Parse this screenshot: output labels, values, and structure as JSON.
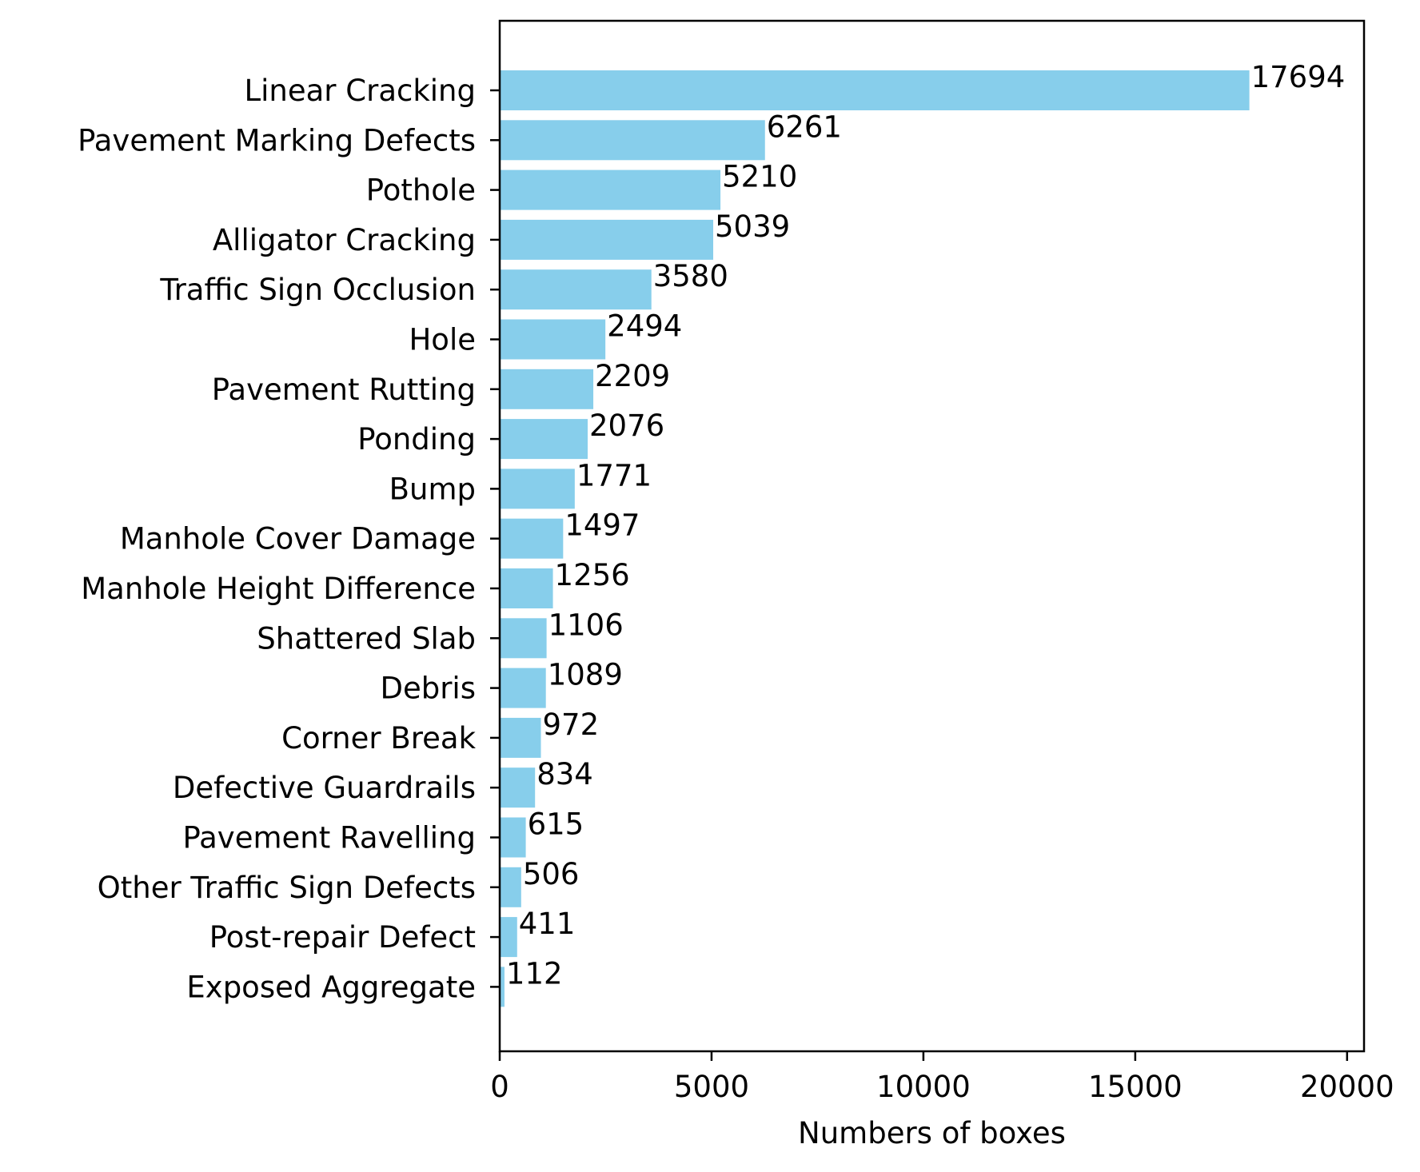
{
  "chart_data": {
    "type": "bar",
    "orientation": "horizontal",
    "categories": [
      "Linear Cracking",
      "Pavement Marking Defects",
      "Pothole",
      "Alligator Cracking",
      "Traffic Sign Occlusion",
      "Hole",
      "Pavement Rutting",
      "Ponding",
      "Bump",
      "Manhole Cover Damage",
      "Manhole Height Difference",
      "Shattered Slab",
      "Debris",
      "Corner Break",
      "Defective Guardrails",
      "Pavement Ravelling",
      "Other Traffic Sign Defects",
      "Post-repair Defect",
      "Exposed Aggregate"
    ],
    "values": [
      17694,
      6261,
      5210,
      5039,
      3580,
      2494,
      2209,
      2076,
      1771,
      1497,
      1256,
      1106,
      1089,
      972,
      834,
      615,
      506,
      411,
      112
    ],
    "data_labels": [
      "17694",
      "6261",
      "5210",
      "5039",
      "3580",
      "2494",
      "2209",
      "2076",
      "1771",
      "1497",
      "1256",
      "1106",
      "1089",
      "972",
      "834",
      "615",
      "506",
      "411",
      "112"
    ],
    "title": "",
    "xlabel": "Numbers of boxes",
    "ylabel": "",
    "xlim": [
      0,
      20400
    ],
    "xticks": [
      0,
      5000,
      10000,
      15000,
      20000
    ],
    "xtick_labels": [
      "0",
      "5000",
      "10000",
      "15000",
      "20000"
    ],
    "grid": false,
    "legend": "none",
    "bar_color": "#87ceeb"
  }
}
